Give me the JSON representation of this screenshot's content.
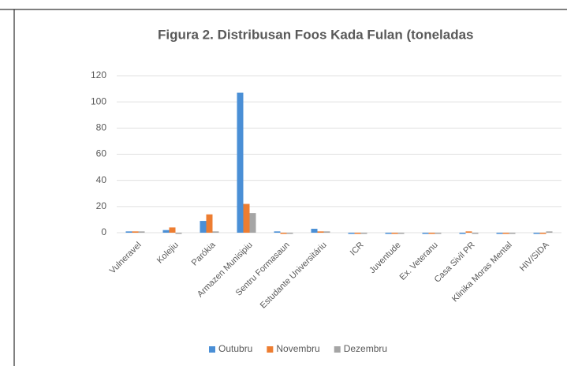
{
  "chart_data": {
    "type": "bar",
    "title": "Figura 2. Distribusan Foos Kada Fulan  (toneladas",
    "categories": [
      "Vulneravel",
      "Kolejiu",
      "Parókia",
      "Armazen Munisipiu",
      "Sentru Formasaun",
      "Estudante Universitáriu",
      "ICR",
      "Juventude",
      "Ex. Veteranu",
      "Casa Sivil PR",
      "Klinika Moras Mental",
      "HIV/SIDA"
    ],
    "series": [
      {
        "name": "Outubru",
        "color": "#4a8fd6",
        "values": [
          1,
          2,
          9,
          107,
          1,
          3,
          0,
          0,
          0,
          0,
          0,
          0
        ]
      },
      {
        "name": "Novembru",
        "color": "#ed7d31",
        "values": [
          1,
          4,
          14,
          22,
          0,
          1,
          0,
          0,
          0,
          1,
          0,
          0
        ]
      },
      {
        "name": "Dezembru",
        "color": "#a5a5a5",
        "values": [
          1,
          0,
          1,
          15,
          0,
          1,
          0,
          0,
          0,
          0,
          0,
          1
        ]
      }
    ],
    "ylim": [
      0,
      120
    ],
    "yticks": [
      0,
      20,
      40,
      60,
      80,
      100,
      120
    ],
    "grid": true
  }
}
